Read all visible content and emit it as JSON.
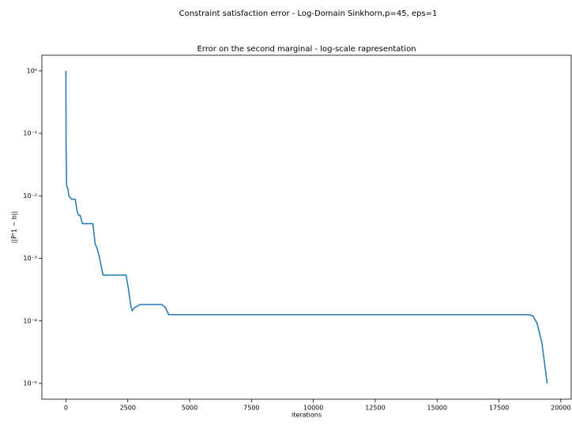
{
  "chart_data": {
    "type": "line",
    "suptitle": "Constraint satisfaction error - Log-Domain Sinkhorn,p=45, eps=1",
    "title": "Error on the second marginal - log-scale rapresentation",
    "xlabel": "iterations",
    "ylabel": "||Pᵀ1 − b||",
    "yscale": "log",
    "grid": false,
    "xlim": [
      -972,
      20420
    ],
    "ylim": [
      1.78,
      5.6e-06
    ],
    "xticks": [
      0,
      2500,
      5000,
      7500,
      10000,
      12500,
      15000,
      17500,
      20000
    ],
    "yticks": [
      {
        "value": 1,
        "label": "10⁰"
      },
      {
        "value": 0.1,
        "label": "10⁻¹"
      },
      {
        "value": 0.01,
        "label": "10⁻²"
      },
      {
        "value": 0.001,
        "label": "10⁻³"
      },
      {
        "value": 0.0001,
        "label": "10⁻⁴"
      },
      {
        "value": 1e-05,
        "label": "10⁻⁵"
      }
    ],
    "series": [
      {
        "color": "#1f77b4",
        "x": [
          0,
          5,
          30,
          80,
          120,
          220,
          380,
          450,
          510,
          570,
          670,
          1090,
          1180,
          1250,
          1340,
          1500,
          2430,
          2520,
          2620,
          2680,
          2780,
          3000,
          3870,
          4030,
          4150,
          18720,
          18880,
          19040,
          19230,
          19450
        ],
        "values": [
          1,
          0.07,
          0.0145,
          0.013,
          0.01,
          0.0089,
          0.0088,
          0.0057,
          0.0049,
          0.0049,
          0.0036,
          0.0036,
          0.0017,
          0.0015,
          0.0011,
          0.00054,
          0.00054,
          0.00034,
          0.000175,
          0.000146,
          0.000164,
          0.000183,
          0.000183,
          0.000163,
          0.000126,
          0.000126,
          0.00012,
          9.13e-05,
          4.6e-05,
          1e-05
        ]
      }
    ]
  }
}
